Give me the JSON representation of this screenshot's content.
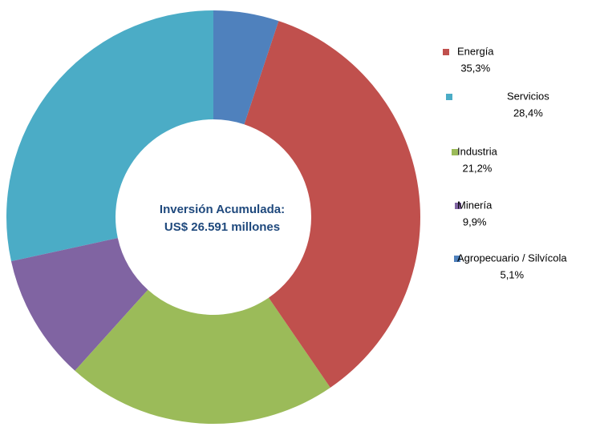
{
  "chart_data": {
    "type": "donut",
    "categories": [
      "Energía",
      "Servicios",
      "Industria",
      "Minería",
      "Agropecuario / Silvícola"
    ],
    "values": [
      35.3,
      28.4,
      21.2,
      9.9,
      5.1
    ],
    "value_labels": [
      "35,3%",
      "28,4%",
      "21,2%",
      "9,9%",
      "5,1%"
    ],
    "colors": [
      "#c0504d",
      "#4bacc6",
      "#9bbb59",
      "#8064a2",
      "#4f81bd"
    ],
    "annotations": [
      "Inversión Acumulada:",
      "US$ 26.591 millones"
    ],
    "legend": "right"
  }
}
